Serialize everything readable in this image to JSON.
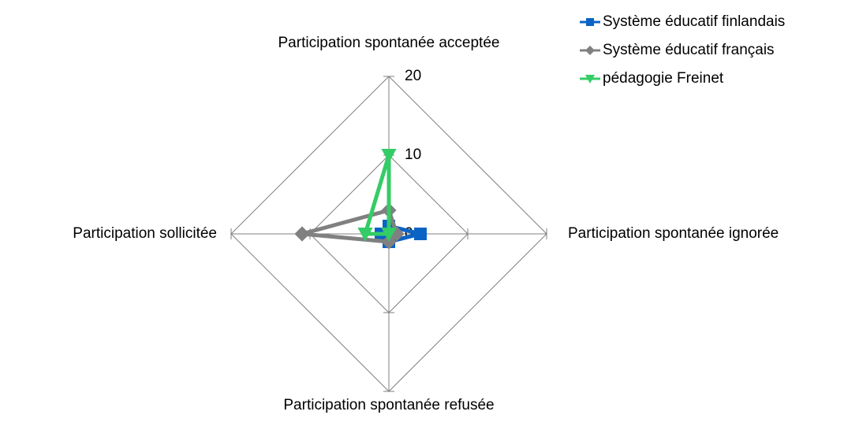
{
  "chart_data": {
    "type": "radar",
    "categories": [
      "Participation spontanée acceptée",
      "Participation spontanée ignorée",
      "Participation spontanée refusée",
      "Participation sollicitée"
    ],
    "series": [
      {
        "name": "Système éducatif finlandais",
        "color": "#0b63c5",
        "marker": "square",
        "values": [
          1,
          4,
          1,
          1
        ]
      },
      {
        "name": "Système éducatif français",
        "color": "#808080",
        "marker": "diamond",
        "values": [
          3,
          1,
          1,
          11
        ]
      },
      {
        "name": "pédagogie Freinet",
        "color": "#33cc66",
        "marker": "triangle-down",
        "values": [
          10,
          0,
          0,
          3
        ]
      }
    ],
    "rlim": [
      0,
      20
    ],
    "rticks": [
      0,
      10,
      20
    ],
    "grid": true,
    "legend": "top-right"
  }
}
